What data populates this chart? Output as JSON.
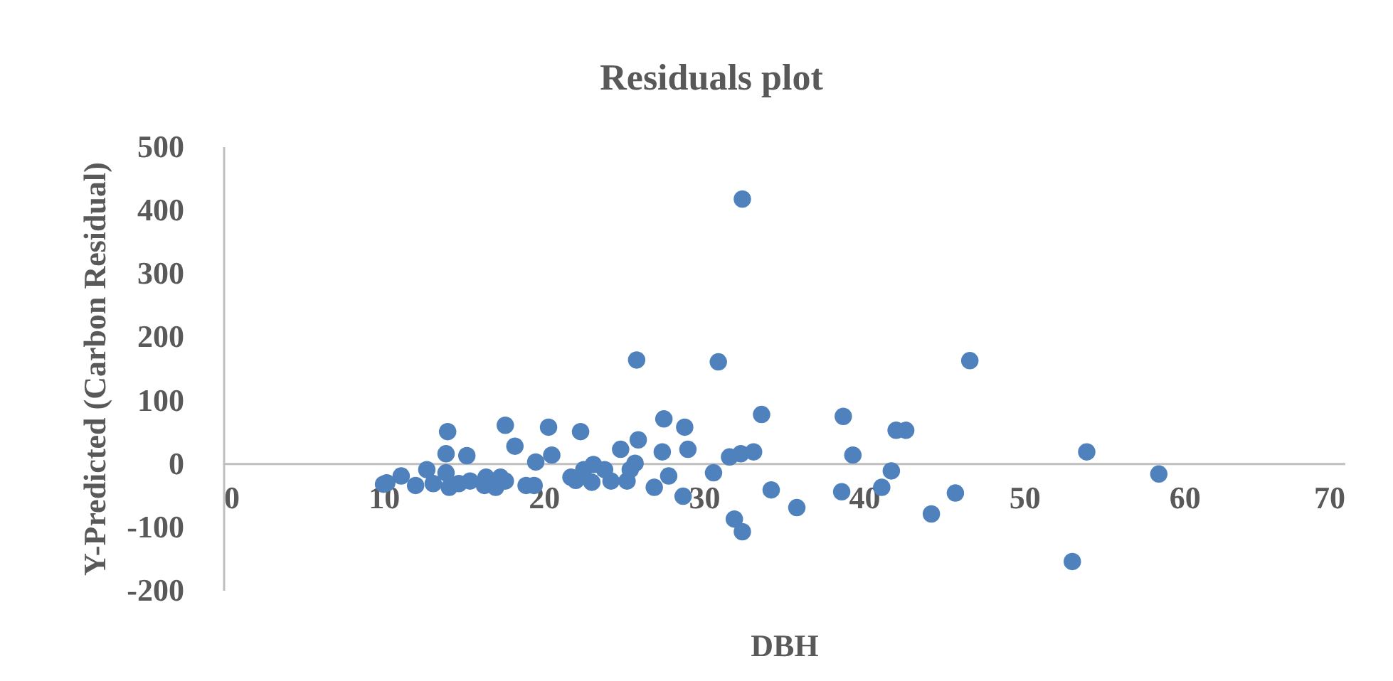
{
  "chart_data": {
    "type": "scatter",
    "title": "Residuals plot",
    "xlabel": "DBH",
    "ylabel": "Y-Predicted (Carbon Residual)",
    "xlim": [
      0,
      70
    ],
    "xticks": [
      0,
      10,
      20,
      30,
      40,
      50,
      60,
      70
    ],
    "ylim": [
      -200,
      500
    ],
    "yticks": [
      -200,
      -100,
      0,
      100,
      200,
      300,
      400,
      500
    ],
    "grid": false,
    "legend": false,
    "marker": "circle",
    "series": [
      {
        "color": "#4f81bd",
        "x": [
          10,
          10.2,
          11.1,
          12,
          12.7,
          13.1,
          13.9,
          13.9,
          14,
          14.1,
          14.7,
          15.2,
          15.4,
          16.3,
          16.4,
          17,
          17.3,
          17.6,
          17.6,
          18.2,
          18.9,
          19.4,
          19.5,
          20.3,
          20.5,
          21.7,
          22,
          22.3,
          22.5,
          23,
          23.1,
          23.8,
          24.2,
          24.8,
          25.2,
          25.4,
          25.7,
          25.8,
          25.9,
          26.9,
          27.4,
          27.5,
          27.8,
          28.7,
          28.8,
          29,
          30.6,
          30.9,
          31.6,
          31.9,
          32.3,
          32.4,
          32.4,
          33.1,
          33.6,
          34.2,
          35.8,
          38.6,
          38.7,
          39.3,
          41.1,
          41.7,
          42,
          42.6,
          44.2,
          45.7,
          46.6,
          53,
          53.9,
          58.4
        ],
        "values": [
          -33,
          -31,
          -20,
          -35,
          -10,
          -32,
          -15,
          15,
          50,
          -38,
          -32,
          12,
          -28,
          -35,
          -22,
          -38,
          -22,
          60,
          -28,
          27,
          -35,
          -35,
          2,
          57,
          13,
          -22,
          -27,
          50,
          -10,
          -30,
          -2,
          -10,
          -28,
          22,
          -28,
          -10,
          0,
          163,
          37,
          -38,
          18,
          70,
          -20,
          -52,
          57,
          22,
          -15,
          160,
          10,
          -88,
          15,
          -108,
          417,
          18,
          77,
          -42,
          -70,
          -45,
          74,
          13,
          -38,
          -12,
          52,
          52,
          -80,
          -47,
          162,
          -155,
          18,
          -17
        ]
      }
    ]
  }
}
